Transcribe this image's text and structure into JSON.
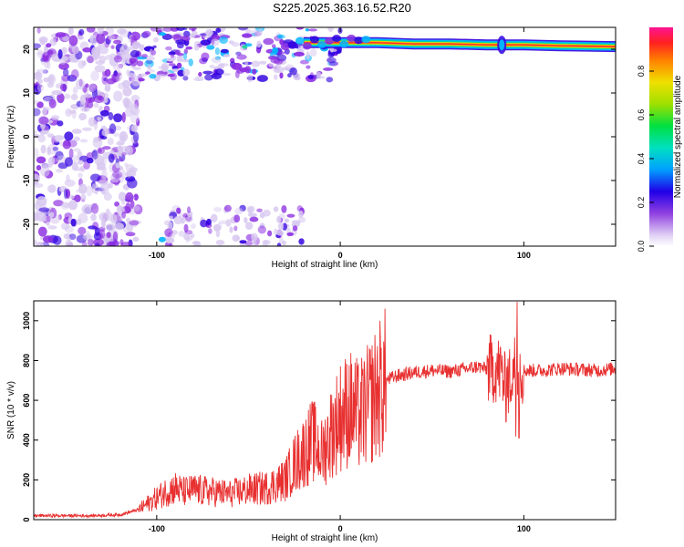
{
  "title": "S225.2025.363.16.52.R20",
  "chart_data": [
    {
      "type": "heatmap",
      "xlabel": "Height of straight line (km)",
      "ylabel": "Frequency (Hz)",
      "xlim": [
        -167,
        150
      ],
      "ylim": [
        -25,
        25
      ],
      "x_ticks": [
        -100,
        0,
        100
      ],
      "y_ticks": [
        -20,
        -10,
        0,
        10,
        20
      ],
      "colorbar": {
        "label": "Normalized spectral amplitude",
        "range": [
          0,
          1
        ],
        "ticks": [
          0.0,
          0.2,
          0.4,
          0.6,
          0.8
        ]
      },
      "colors": [
        "#ffffff",
        "#d8c8f0",
        "#8a2be2",
        "#3000e0",
        "#00b4ff",
        "#00e090",
        "#80e000",
        "#e8e000",
        "#ff9000",
        "#ff2040",
        "#ff1493"
      ],
      "ridge": {
        "x": [
          -20,
          0,
          20,
          40,
          60,
          80,
          100,
          120,
          150
        ],
        "y": [
          21.5,
          21.5,
          21.5,
          21.2,
          21.2,
          21.0,
          21.0,
          20.8,
          20.6
        ]
      }
    },
    {
      "type": "line",
      "xlabel": "Height of straight line (km)",
      "ylabel": "SNR (10 * v/v)",
      "xlim": [
        -167,
        150
      ],
      "ylim": [
        0,
        1100
      ],
      "x_ticks": [
        -100,
        0,
        100
      ],
      "y_ticks": [
        0,
        200,
        400,
        600,
        800,
        1000
      ],
      "color": "#e83030",
      "series": [
        {
          "x": [
            -167,
            -150,
            -135,
            -120,
            -110,
            -100,
            -95,
            -90,
            -85,
            -80,
            -70,
            -60,
            -50,
            -40,
            -30,
            -25,
            -20,
            -15,
            -10,
            -5,
            0,
            5,
            10,
            15,
            20,
            25,
            30,
            40,
            50,
            60,
            70,
            75,
            80,
            85,
            88,
            90,
            92,
            95,
            100,
            110,
            120,
            130,
            140,
            150
          ],
          "y": [
            20,
            20,
            20,
            25,
            50,
            110,
            140,
            160,
            140,
            150,
            140,
            130,
            150,
            160,
            200,
            280,
            340,
            400,
            330,
            440,
            520,
            560,
            520,
            570,
            640,
            700,
            720,
            740,
            750,
            745,
            760,
            770,
            755,
            760,
            740,
            650,
            700,
            770,
            750,
            750,
            760,
            755,
            750,
            760
          ]
        }
      ]
    }
  ]
}
